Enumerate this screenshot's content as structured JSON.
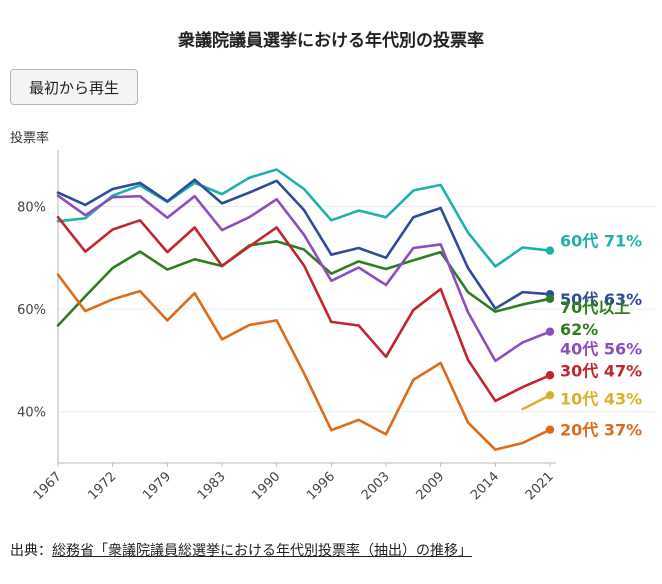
{
  "title": "衆議院議員選挙における年代別の投票率",
  "replay_label": "最初から再生",
  "source": {
    "prefix": "出典：",
    "link_text": "総務省「衆議院議員総選挙における年代別投票率（抽出）の推移」"
  },
  "chart_data": {
    "type": "line",
    "ylabel": "投票率",
    "xlabel": "",
    "ylim": [
      30,
      91
    ],
    "yticks": [
      "40%",
      "60%",
      "80%"
    ],
    "x": [
      1967,
      1969,
      1972,
      1976,
      1979,
      1980,
      1983,
      1986,
      1990,
      1993,
      1996,
      2000,
      2003,
      2005,
      2009,
      2012,
      2014,
      2017,
      2021
    ],
    "xticks": [
      "1967",
      "1972",
      "1979",
      "1983",
      "1990",
      "1996",
      "2003",
      "2009",
      "2014",
      "2021"
    ],
    "grid": "horizontal",
    "series": [
      {
        "name": "60代",
        "label": "71%",
        "color": "#1fb0aa",
        "values": [
          77.1,
          77.7,
          82.1,
          84.1,
          80.9,
          84.6,
          82.4,
          85.6,
          87.2,
          83.4,
          77.3,
          79.2,
          77.9,
          83.1,
          84.2,
          74.9,
          68.3,
          72.0,
          71.4
        ]
      },
      {
        "name": "50代",
        "label": "63%",
        "color": "#2e4c9a",
        "values": [
          82.7,
          80.3,
          83.4,
          84.6,
          81.0,
          85.2,
          80.6,
          82.7,
          85.0,
          79.3,
          70.6,
          71.9,
          70.0,
          77.9,
          79.7,
          68.0,
          60.1,
          63.3,
          62.9
        ]
      },
      {
        "name": "70代以上",
        "label": "62%",
        "color": "#2f7d1f",
        "values": [
          56.8,
          62.5,
          68.0,
          71.2,
          67.7,
          69.7,
          68.4,
          72.4,
          73.2,
          71.6,
          66.9,
          69.3,
          67.8,
          69.5,
          71.1,
          63.3,
          59.5,
          60.9,
          62.0
        ]
      },
      {
        "name": "40代",
        "label": "56%",
        "color": "#8b4ec0",
        "values": [
          82.1,
          78.3,
          81.8,
          82.0,
          77.8,
          82.0,
          75.4,
          77.9,
          81.4,
          74.5,
          65.5,
          68.1,
          64.7,
          71.9,
          72.6,
          59.4,
          49.9,
          53.5,
          55.6
        ]
      },
      {
        "name": "30代",
        "label": "47%",
        "color": "#c0262b",
        "values": [
          77.9,
          71.2,
          75.5,
          77.3,
          71.1,
          75.9,
          68.4,
          72.2,
          75.9,
          68.5,
          57.5,
          56.8,
          50.7,
          59.8,
          63.9,
          50.1,
          42.1,
          44.8,
          47.1
        ]
      },
      {
        "name": "10代",
        "label": "43%",
        "color": "#d8b22a",
        "values": [
          null,
          null,
          null,
          null,
          null,
          null,
          null,
          null,
          null,
          null,
          null,
          null,
          null,
          null,
          null,
          null,
          null,
          40.5,
          43.2
        ]
      },
      {
        "name": "20代",
        "label": "37%",
        "color": "#dc6b1a",
        "values": [
          66.7,
          59.6,
          61.9,
          63.5,
          57.8,
          63.1,
          54.1,
          56.9,
          57.8,
          47.5,
          36.4,
          38.4,
          35.6,
          46.2,
          49.5,
          37.9,
          32.6,
          33.9,
          36.5
        ]
      }
    ]
  }
}
